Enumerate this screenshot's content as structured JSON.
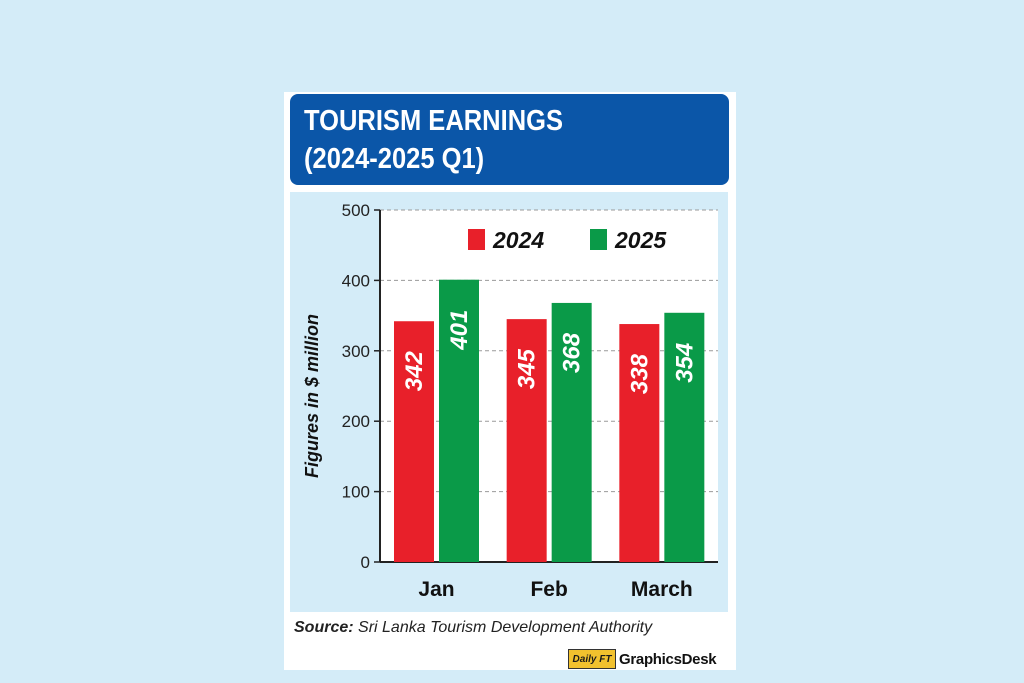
{
  "header": {
    "title_line1": "TOURISM EARNINGS",
    "title_line2": "(2024-2025 Q1)"
  },
  "chart_data": {
    "type": "bar",
    "categories": [
      "Jan",
      "Feb",
      "March"
    ],
    "series": [
      {
        "name": "2024",
        "values": [
          342,
          345,
          338
        ],
        "color": "#e8202a"
      },
      {
        "name": "2025",
        "values": [
          401,
          368,
          354
        ],
        "color": "#0a9a48"
      }
    ],
    "ylabel": "Figures in $ million",
    "ylim": [
      0,
      500
    ],
    "yticks": [
      0,
      100,
      200,
      300,
      400,
      500
    ],
    "grid": true,
    "legend": "top-right",
    "data_labels": true
  },
  "source": {
    "label": "Source:",
    "text": "Sri Lanka Tourism Development Authority"
  },
  "footer": {
    "logo_badge": "Daily FT",
    "credit": "GraphicsDesk"
  }
}
